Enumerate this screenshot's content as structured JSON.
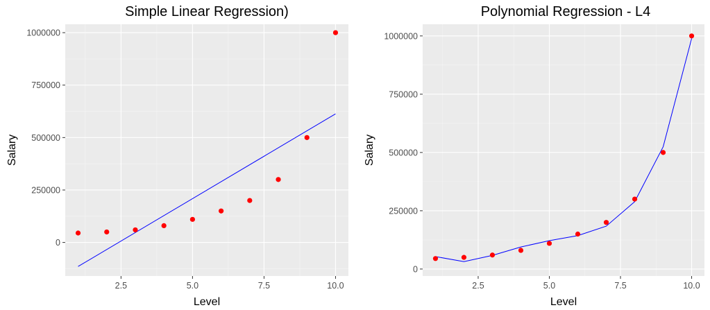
{
  "chart_data": [
    {
      "type": "scatter",
      "title": "Simple Linear Regression)",
      "xlabel": "Level",
      "ylabel": "Salary",
      "xlim": [
        0.55,
        10.45
      ],
      "ylim": [
        -160000,
        1040000
      ],
      "x_ticks": [
        2.5,
        5.0,
        7.5,
        10.0
      ],
      "x_tick_labels": [
        "2.5",
        "5.0",
        "7.5",
        "10.0"
      ],
      "y_ticks": [
        0,
        250000,
        500000,
        750000,
        1000000
      ],
      "y_tick_labels": [
        "0",
        "250000",
        "500000",
        "750000",
        "1000000"
      ],
      "grid": true,
      "background": "#ebebeb",
      "point_color": "#ff0000",
      "line_color": "#0000ff",
      "points": {
        "x": [
          1,
          2,
          3,
          4,
          5,
          6,
          7,
          8,
          9,
          10
        ],
        "y": [
          45000,
          50000,
          60000,
          80000,
          110000,
          150000,
          200000,
          300000,
          500000,
          1000000
        ]
      },
      "fit_line": {
        "x": [
          1,
          10
        ],
        "y": [
          -114455,
          613000
        ]
      }
    },
    {
      "type": "scatter",
      "title": "Polynomial Regression - L4",
      "xlabel": "Level",
      "ylabel": "Salary",
      "xlim": [
        0.55,
        10.45
      ],
      "ylim": [
        -30000,
        1050000
      ],
      "x_ticks": [
        2.5,
        5.0,
        7.5,
        10.0
      ],
      "x_tick_labels": [
        "2.5",
        "5.0",
        "7.5",
        "10.0"
      ],
      "y_ticks": [
        0,
        250000,
        500000,
        750000,
        1000000
      ],
      "y_tick_labels": [
        "0",
        "250000",
        "500000",
        "750000",
        "1000000"
      ],
      "grid": true,
      "background": "#ebebeb",
      "point_color": "#ff0000",
      "line_color": "#0000ff",
      "points": {
        "x": [
          1,
          2,
          3,
          4,
          5,
          6,
          7,
          8,
          9,
          10
        ],
        "y": [
          45000,
          50000,
          60000,
          80000,
          110000,
          150000,
          200000,
          300000,
          500000,
          1000000
        ]
      },
      "fit_line": {
        "x": [
          1,
          2,
          3,
          4,
          5,
          6,
          7,
          8,
          9,
          10
        ],
        "y": [
          53357,
          31760,
          58643,
          94632,
          121724,
          143275,
          184005,
          289000,
          524707,
          988935
        ]
      }
    }
  ]
}
